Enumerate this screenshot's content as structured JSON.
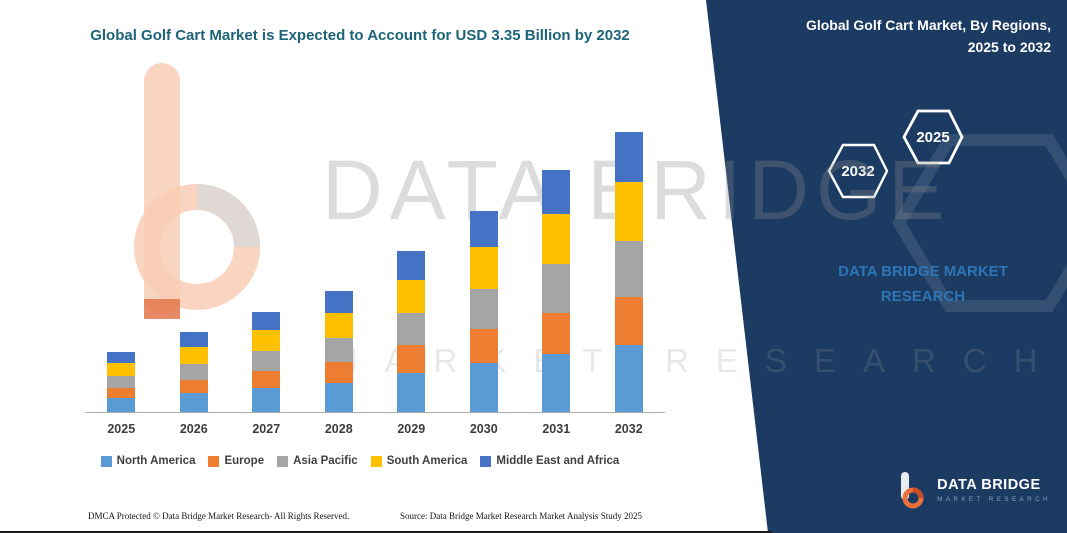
{
  "title": "Global Golf Cart Market is Expected to Account for USD 3.35 Billion by 2032",
  "watermark": {
    "line1": "DATA BRIDGE",
    "line2": "MARKET RESEARCH"
  },
  "panel": {
    "title": "Global Golf Cart Market, By Regions, 2025 to 2032",
    "hexagons": [
      "2032",
      "2025"
    ],
    "brand_text": "DATA BRIDGE MARKET RESEARCH",
    "logo_name": "DATA BRIDGE",
    "logo_subtitle": "MARKET RESEARCH",
    "bg_color": "#1c3b63",
    "accent_text_color": "#2e75b6"
  },
  "footer": {
    "dmca": "DMCA Protected © Data Bridge Market Research-  All Rights Reserved.",
    "source": "Source: Data Bridge Market Research  Market Analysis Study 2025"
  },
  "chart_data": {
    "type": "bar",
    "stacked": true,
    "title": "Global Golf Cart Market is Expected to Account for USD 3.35 Billion by 2032",
    "unit": "USD Billion",
    "categories": [
      "2025",
      "2026",
      "2027",
      "2028",
      "2029",
      "2030",
      "2031",
      "2032"
    ],
    "series": [
      {
        "name": "North America",
        "color": "#5B9BD5",
        "values": [
          0.17,
          0.23,
          0.29,
          0.35,
          0.46,
          0.58,
          0.69,
          0.8
        ]
      },
      {
        "name": "Europe",
        "color": "#ED7D31",
        "values": [
          0.12,
          0.16,
          0.2,
          0.25,
          0.33,
          0.41,
          0.49,
          0.57
        ]
      },
      {
        "name": "Asia Pacific",
        "color": "#A5A5A5",
        "values": [
          0.14,
          0.19,
          0.24,
          0.29,
          0.38,
          0.48,
          0.58,
          0.67
        ]
      },
      {
        "name": "South America",
        "color": "#FFC000",
        "values": [
          0.16,
          0.2,
          0.25,
          0.3,
          0.4,
          0.5,
          0.6,
          0.71
        ]
      },
      {
        "name": "Middle East and Africa",
        "color": "#4472C4",
        "values": [
          0.13,
          0.18,
          0.22,
          0.26,
          0.35,
          0.43,
          0.52,
          0.6
        ]
      }
    ],
    "totals": [
      0.72,
      0.96,
      1.2,
      1.45,
      1.92,
      2.4,
      2.88,
      3.35
    ],
    "ylim": [
      0,
      3.5
    ],
    "grid": false,
    "legend_position": "bottom",
    "xlabel": "",
    "ylabel": ""
  }
}
